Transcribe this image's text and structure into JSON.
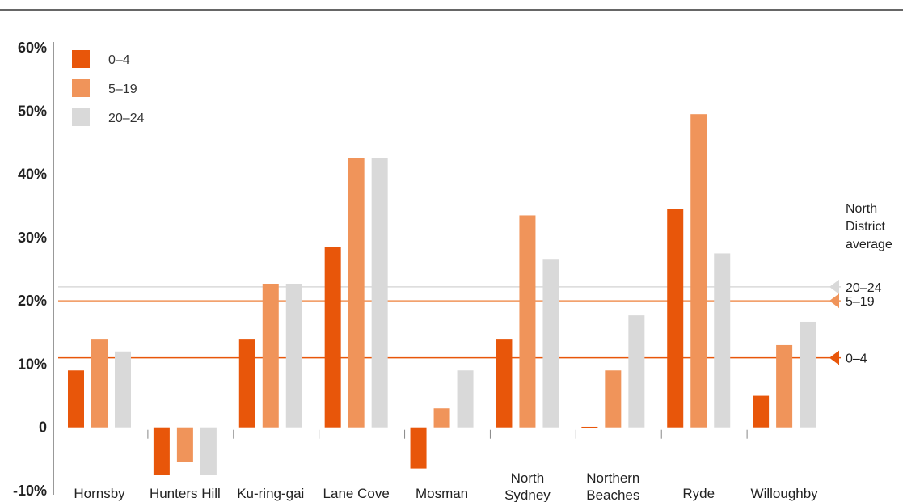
{
  "chart_data": {
    "type": "bar",
    "categories": [
      "Hornsby",
      "Hunters Hill",
      "Ku-ring-gai",
      "Lane Cove",
      "Mosman",
      "North Sydney",
      "Northern Beaches",
      "Ryde",
      "Willoughby"
    ],
    "category_lines": [
      [
        "Hornsby"
      ],
      [
        "Hunters Hill"
      ],
      [
        "Ku-ring-gai"
      ],
      [
        "Lane Cove"
      ],
      [
        "Mosman"
      ],
      [
        "North",
        "Sydney"
      ],
      [
        "Northern",
        "Beaches"
      ],
      [
        "Ryde"
      ],
      [
        "Willoughby"
      ]
    ],
    "series": [
      {
        "name": "0–4",
        "color": "#E8560A",
        "values": [
          9,
          -7.5,
          14,
          28.5,
          -6.5,
          14,
          0,
          34.5,
          5
        ]
      },
      {
        "name": "5–19",
        "color": "#F0945A",
        "values": [
          14,
          -5.5,
          22.7,
          42.5,
          3,
          33.5,
          9,
          49.5,
          13
        ]
      },
      {
        "name": "20–24",
        "color": "#D9D9D9",
        "values": [
          12,
          -7.5,
          22.7,
          42.5,
          9,
          26.5,
          17.7,
          27.5,
          16.7
        ]
      }
    ],
    "y_ticks": [
      {
        "value": 60,
        "label": "60%"
      },
      {
        "value": 50,
        "label": "50%"
      },
      {
        "value": 40,
        "label": "40%"
      },
      {
        "value": 30,
        "label": "30%"
      },
      {
        "value": 20,
        "label": "20%"
      },
      {
        "value": 10,
        "label": "10%"
      },
      {
        "value": 0,
        "label": "0"
      },
      {
        "value": -10,
        "label": "-10%"
      }
    ],
    "ylim": [
      -10,
      60
    ],
    "legend_position": "top-left",
    "reference": {
      "title_lines": [
        "North",
        "District",
        "average"
      ],
      "lines": [
        {
          "series": "20–24",
          "value": 22.2,
          "color": "#D9D9D9",
          "label": "20–24"
        },
        {
          "series": "5–19",
          "value": 20,
          "color": "#F0945A",
          "label": "5–19"
        },
        {
          "series": "0–4",
          "value": 11,
          "color": "#E8560A",
          "label": "0–4"
        }
      ]
    }
  }
}
